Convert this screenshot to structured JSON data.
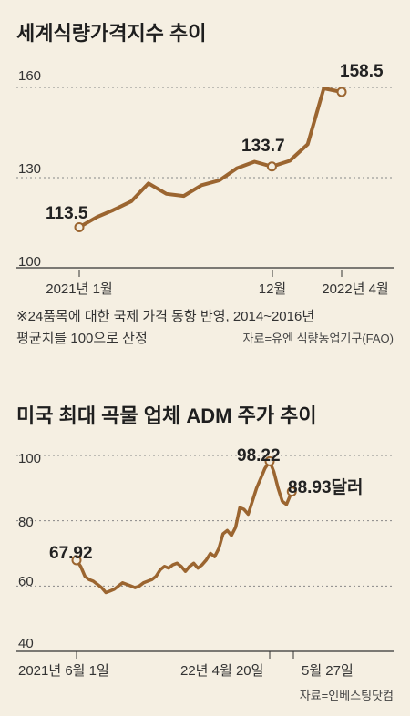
{
  "chart_data": [
    {
      "type": "line",
      "title": "세계식량가격지수 추이",
      "y_ticks": [
        "160",
        "130",
        "100"
      ],
      "ylim": [
        100,
        160
      ],
      "x_tick_labels": [
        "2021년 1월",
        "12월",
        "2022년 4월"
      ],
      "series": [
        {
          "x": [
            "2021-01",
            "2021-02",
            "2021-03",
            "2021-04",
            "2021-05",
            "2021-06",
            "2021-07",
            "2021-08",
            "2021-09",
            "2021-10",
            "2021-11",
            "2021-12",
            "2022-01",
            "2022-02",
            "2022-03",
            "2022-04"
          ],
          "values": [
            113.5,
            116.9,
            119.2,
            122.1,
            128.1,
            124.6,
            123.9,
            127.5,
            129.1,
            133.1,
            135.3,
            133.7,
            135.6,
            141.1,
            159.7,
            158.5
          ]
        }
      ],
      "annotations": [
        "113.5",
        "133.7",
        "158.5"
      ],
      "footnote": "※24품목에 대한 국제 가격 동향 반영, 2014~2016년 평균치를 100으로 산정",
      "footnote_line1": "※24품목에 대한 국제 가격 동향 반영, 2014~2016년",
      "footnote_line2": "평균치를 100으로 산정",
      "source": "자료=유엔 식량농업기구(FAO)",
      "line_color": "#9b6530"
    },
    {
      "type": "line",
      "title": "미국 최대 곡물 업체 ADM 주가 추이",
      "y_ticks": [
        "100",
        "80",
        "60",
        "40"
      ],
      "ylim": [
        40,
        100
      ],
      "x_tick_labels": [
        "2021년 6월 1일",
        "22년 4월 20일",
        "5월 27일"
      ],
      "series": [
        {
          "x": [
            "2021-06-01",
            "2021-06-08",
            "2021-06-15",
            "2021-06-22",
            "2021-06-29",
            "2021-07-06",
            "2021-07-13",
            "2021-07-20",
            "2021-07-27",
            "2021-08-03",
            "2021-08-10",
            "2021-08-17",
            "2021-08-24",
            "2021-08-31",
            "2021-09-07",
            "2021-09-14",
            "2021-09-21",
            "2021-09-28",
            "2021-10-05",
            "2021-10-12",
            "2021-10-19",
            "2021-10-26",
            "2021-11-02",
            "2021-11-09",
            "2021-11-16",
            "2021-11-23",
            "2021-11-30",
            "2021-12-07",
            "2021-12-14",
            "2021-12-21",
            "2021-12-28",
            "2022-01-04",
            "2022-01-11",
            "2022-01-18",
            "2022-01-25",
            "2022-02-01",
            "2022-02-08",
            "2022-02-15",
            "2022-02-22",
            "2022-03-01",
            "2022-03-08",
            "2022-03-15",
            "2022-03-22",
            "2022-03-29",
            "2022-04-05",
            "2022-04-12",
            "2022-04-20",
            "2022-04-27",
            "2022-05-04",
            "2022-05-11",
            "2022-05-18",
            "2022-05-27"
          ],
          "values": [
            67.92,
            66.0,
            63.0,
            62.0,
            61.5,
            60.5,
            59.5,
            58.0,
            58.5,
            59.0,
            60.0,
            61.0,
            60.5,
            60.0,
            59.5,
            60.0,
            61.0,
            61.5,
            62.0,
            63.0,
            65.0,
            66.0,
            65.5,
            66.5,
            67.0,
            66.0,
            64.5,
            66.0,
            67.0,
            65.5,
            66.5,
            68.0,
            70.0,
            69.0,
            71.5,
            76.0,
            77.0,
            75.5,
            78.0,
            84.0,
            83.5,
            82.0,
            86.0,
            90.0,
            93.0,
            96.0,
            98.22,
            95.0,
            90.0,
            86.0,
            85.0,
            88.93
          ]
        }
      ],
      "annotations": [
        "67.92",
        "98.22",
        "88.93달러"
      ],
      "source": "자료=인베스팅닷컴",
      "line_color": "#9b6530"
    }
  ]
}
